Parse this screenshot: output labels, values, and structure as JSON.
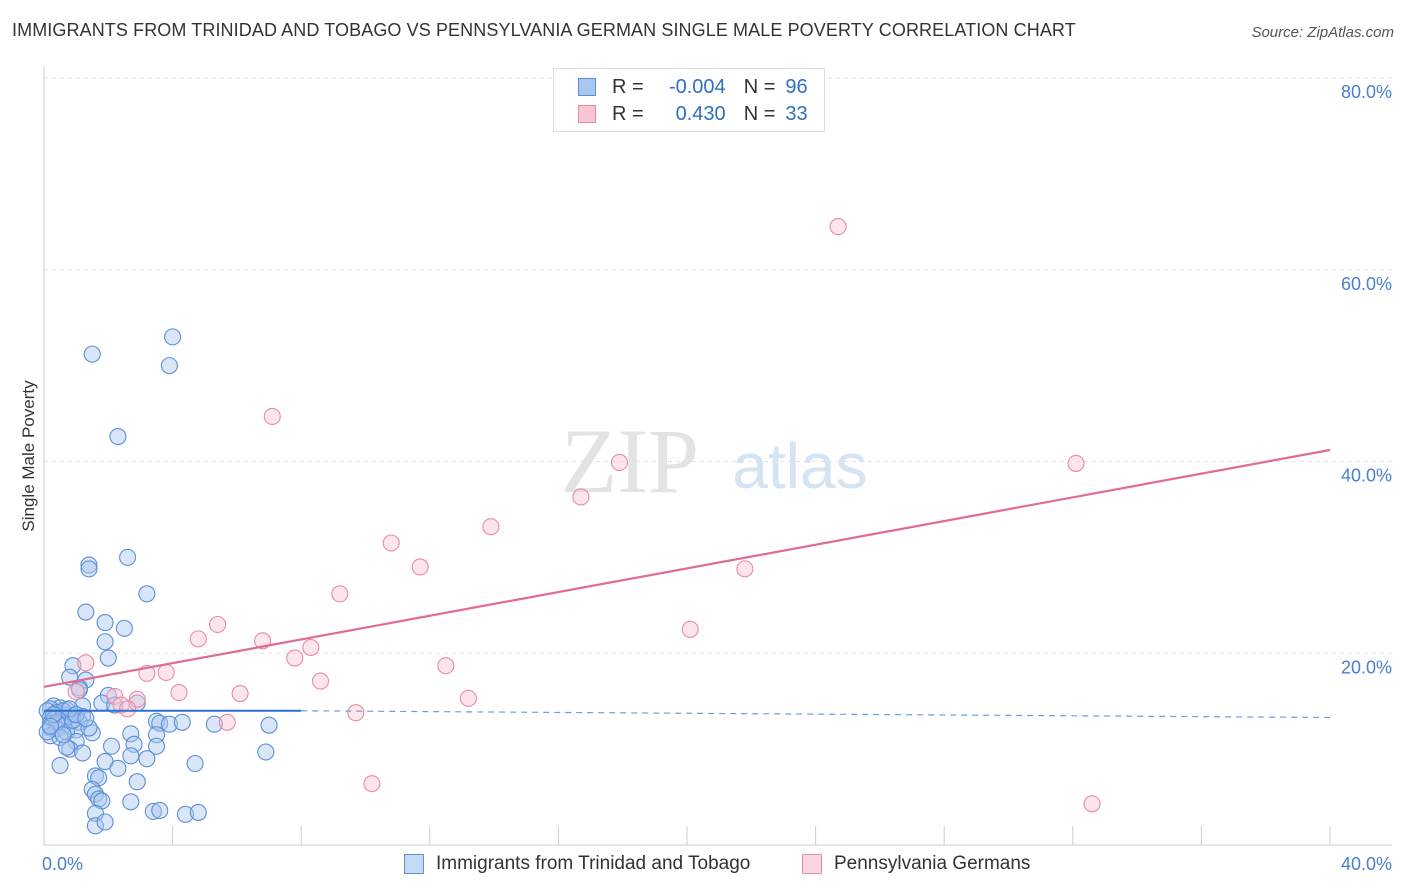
{
  "title": "IMMIGRANTS FROM TRINIDAD AND TOBAGO VS PENNSYLVANIA GERMAN SINGLE MALE POVERTY CORRELATION CHART",
  "source": "Source: ZipAtlas.com",
  "watermark": {
    "zip": "ZIP",
    "atlas": "atlas"
  },
  "legend": {
    "rows": [
      {
        "r_label": "R =",
        "r_value": "-0.004",
        "n_label": "N =",
        "n_value": "96",
        "color": "#a9c8f0",
        "border": "#5b8fd6"
      },
      {
        "r_label": "R =",
        "r_value": "0.430",
        "n_label": "N =",
        "n_value": "33",
        "color": "#f8c5d3",
        "border": "#e98aa5"
      }
    ]
  },
  "chart_data": {
    "type": "scatter",
    "ylabel": "Single Male Poverty",
    "xlim": [
      0,
      40
    ],
    "ylim": [
      0,
      80
    ],
    "x_tick_labels": [
      "0.0%",
      "40.0%"
    ],
    "y_ticks": [
      20,
      40,
      60,
      80
    ],
    "y_tick_labels": [
      "20.0%",
      "40.0%",
      "60.0%",
      "80.0%"
    ],
    "series": [
      {
        "name": "Immigrants from Trinidad and Tobago",
        "color": "#5b8fd6",
        "fill": "rgba(169,200,240,0.45)",
        "trend": {
          "x0": 0,
          "y0": 14.0,
          "x1": 8,
          "y1": 14.0,
          "dash_to_x": 40,
          "dash_to_y": 13.3
        },
        "points": [
          [
            1.5,
            51.2
          ],
          [
            3.9,
            50.0
          ],
          [
            4.0,
            53.0
          ],
          [
            2.3,
            42.6
          ],
          [
            2.6,
            30.0
          ],
          [
            1.4,
            29.2
          ],
          [
            1.4,
            28.8
          ],
          [
            3.2,
            26.2
          ],
          [
            1.3,
            24.3
          ],
          [
            2.5,
            22.6
          ],
          [
            1.9,
            23.2
          ],
          [
            1.9,
            21.2
          ],
          [
            2.0,
            19.5
          ],
          [
            0.9,
            18.7
          ],
          [
            0.8,
            17.5
          ],
          [
            1.3,
            17.2
          ],
          [
            1.1,
            16.4
          ],
          [
            1.1,
            16.2
          ],
          [
            2.0,
            15.6
          ],
          [
            2.9,
            14.8
          ],
          [
            1.8,
            14.8
          ],
          [
            1.2,
            14.5
          ],
          [
            0.7,
            14.1
          ],
          [
            0.3,
            14.5
          ],
          [
            0.5,
            14.3
          ],
          [
            0.2,
            14.2
          ],
          [
            0.1,
            14.0
          ],
          [
            0.4,
            13.8
          ],
          [
            0.6,
            13.6
          ],
          [
            0.9,
            13.5
          ],
          [
            1.2,
            13.4
          ],
          [
            0.2,
            13.3
          ],
          [
            0.7,
            13.2
          ],
          [
            0.3,
            13.1
          ],
          [
            0.5,
            13.0
          ],
          [
            0.8,
            12.9
          ],
          [
            1.1,
            12.8
          ],
          [
            0.2,
            12.7
          ],
          [
            0.4,
            12.6
          ],
          [
            3.5,
            12.9
          ],
          [
            3.6,
            12.7
          ],
          [
            3.9,
            12.6
          ],
          [
            4.3,
            12.8
          ],
          [
            5.3,
            12.6
          ],
          [
            7.0,
            12.5
          ],
          [
            0.6,
            12.4
          ],
          [
            0.2,
            12.2
          ],
          [
            0.4,
            12.1
          ],
          [
            1.0,
            12.0
          ],
          [
            0.7,
            11.8
          ],
          [
            1.5,
            11.7
          ],
          [
            2.7,
            11.6
          ],
          [
            3.5,
            11.5
          ],
          [
            0.2,
            11.4
          ],
          [
            0.5,
            11.2
          ],
          [
            1.0,
            10.8
          ],
          [
            2.1,
            10.3
          ],
          [
            2.8,
            10.5
          ],
          [
            3.5,
            10.3
          ],
          [
            0.8,
            10.0
          ],
          [
            0.7,
            10.2
          ],
          [
            6.9,
            9.7
          ],
          [
            1.2,
            9.6
          ],
          [
            2.7,
            9.3
          ],
          [
            3.2,
            9.0
          ],
          [
            0.5,
            8.3
          ],
          [
            1.9,
            8.7
          ],
          [
            2.3,
            8.0
          ],
          [
            4.7,
            8.5
          ],
          [
            1.6,
            7.2
          ],
          [
            1.7,
            7.0
          ],
          [
            2.9,
            6.6
          ],
          [
            1.5,
            5.8
          ],
          [
            1.6,
            5.3
          ],
          [
            1.7,
            4.8
          ],
          [
            1.8,
            4.6
          ],
          [
            2.7,
            4.5
          ],
          [
            1.6,
            3.3
          ],
          [
            3.4,
            3.5
          ],
          [
            3.6,
            3.6
          ],
          [
            4.4,
            3.2
          ],
          [
            4.8,
            3.4
          ],
          [
            1.6,
            2.0
          ],
          [
            1.9,
            2.4
          ],
          [
            0.6,
            14.0
          ],
          [
            0.4,
            12.8
          ],
          [
            0.3,
            13.6
          ],
          [
            0.9,
            13.0
          ],
          [
            1.4,
            12.2
          ],
          [
            0.1,
            11.8
          ],
          [
            0.2,
            12.4
          ],
          [
            0.8,
            14.2
          ],
          [
            1.0,
            13.6
          ],
          [
            0.6,
            11.5
          ],
          [
            1.3,
            13.2
          ],
          [
            2.2,
            14.6
          ]
        ]
      },
      {
        "name": "Pennsylvania Germans",
        "color": "#e98aa5",
        "fill": "rgba(248,197,211,0.45)",
        "trend": {
          "x0": 0,
          "y0": 16.5,
          "x1": 40,
          "y1": 41.2
        },
        "points": [
          [
            24.7,
            64.5
          ],
          [
            7.1,
            44.7
          ],
          [
            17.9,
            39.9
          ],
          [
            32.1,
            39.8
          ],
          [
            16.7,
            36.3
          ],
          [
            13.9,
            33.2
          ],
          [
            10.8,
            31.5
          ],
          [
            11.7,
            29.0
          ],
          [
            21.8,
            28.8
          ],
          [
            9.2,
            26.2
          ],
          [
            5.4,
            23.0
          ],
          [
            4.8,
            21.5
          ],
          [
            6.8,
            21.3
          ],
          [
            8.3,
            20.6
          ],
          [
            20.1,
            22.5
          ],
          [
            7.8,
            19.5
          ],
          [
            12.5,
            18.7
          ],
          [
            1.3,
            19.0
          ],
          [
            3.2,
            17.9
          ],
          [
            3.8,
            18.0
          ],
          [
            8.6,
            17.1
          ],
          [
            1.0,
            16.0
          ],
          [
            4.2,
            15.9
          ],
          [
            6.1,
            15.8
          ],
          [
            2.2,
            15.5
          ],
          [
            2.9,
            15.2
          ],
          [
            13.2,
            15.3
          ],
          [
            2.4,
            14.6
          ],
          [
            2.6,
            14.2
          ],
          [
            9.7,
            13.8
          ],
          [
            5.7,
            12.8
          ],
          [
            10.2,
            6.4
          ],
          [
            32.6,
            4.3
          ]
        ]
      }
    ]
  }
}
